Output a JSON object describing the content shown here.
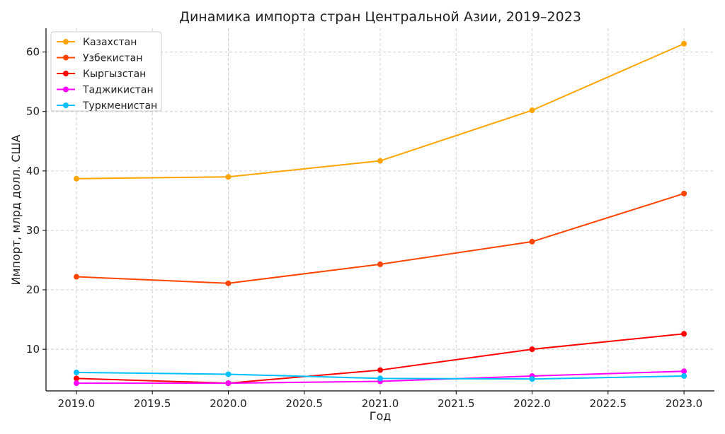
{
  "chart_data": {
    "type": "line",
    "title": "Динамика импорта стран Центральной Азии, 2019–2023",
    "xlabel": "Год",
    "ylabel": "Импорт, млрд долл. США",
    "x": [
      2019,
      2020,
      2021,
      2022,
      2023
    ],
    "xlim": [
      2018.8,
      2023.2
    ],
    "ylim": [
      3.0,
      64.0
    ],
    "xticks": [
      "2019.0",
      "2019.5",
      "2020.0",
      "2020.5",
      "2021.0",
      "2021.5",
      "2022.0",
      "2022.5",
      "2023.0"
    ],
    "yticks": [
      "10",
      "20",
      "30",
      "40",
      "50",
      "60"
    ],
    "grid": true,
    "legend_position": "top-left",
    "series": [
      {
        "name": "Казахстан",
        "color": "#FFA500",
        "values": [
          38.7,
          39.0,
          41.7,
          50.2,
          61.4
        ]
      },
      {
        "name": "Узбекистан",
        "color": "#FF4500",
        "values": [
          22.2,
          21.1,
          24.3,
          28.1,
          36.2
        ]
      },
      {
        "name": "Кыргызстан",
        "color": "#FF0000",
        "values": [
          5.1,
          4.3,
          6.5,
          10.0,
          12.6
        ]
      },
      {
        "name": "Таджикистан",
        "color": "#FF00FF",
        "values": [
          4.3,
          4.3,
          4.6,
          5.5,
          6.3
        ]
      },
      {
        "name": "Туркменистан",
        "color": "#00BFFF",
        "values": [
          6.1,
          5.8,
          5.1,
          5.0,
          5.5
        ]
      }
    ]
  }
}
